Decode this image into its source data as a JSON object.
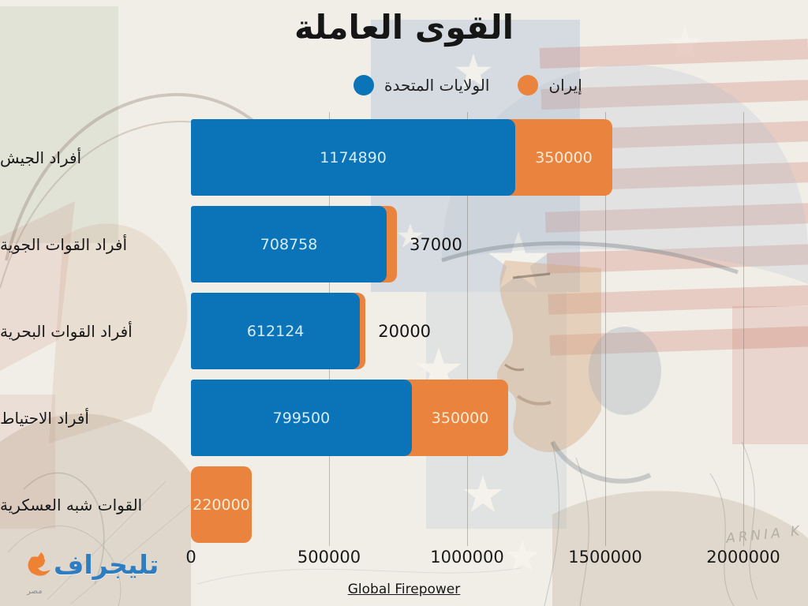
{
  "title": "القوى العاملة",
  "signature": "ARNIA K",
  "logo": {
    "name": "تليجراف",
    "sub": "مصر"
  },
  "colors": {
    "us": "#0b74b8",
    "iran": "#ea833d",
    "page_bg": "#f1eee7",
    "text": "#161616",
    "us_value_text": "#d6ebf8",
    "iran_value_text": "#f7ecd7"
  },
  "chart_data": {
    "type": "bar",
    "orientation": "horizontal",
    "stacked": true,
    "title": "القوى العاملة",
    "categories": [
      "أفراد الجيش",
      "أفراد القوات الجوية",
      "أفراد القوات البحرية",
      "أفراد الاحتياط",
      "القوات شبه العسكرية"
    ],
    "series": [
      {
        "name": "الولايات المتحدة",
        "color": "#0b74b8",
        "values": [
          1174890,
          708758,
          612124,
          799500,
          null
        ]
      },
      {
        "name": "إيران",
        "color": "#ea833d",
        "values": [
          350000,
          37000,
          20000,
          350000,
          220000
        ]
      }
    ],
    "x_ticks": [
      0,
      500000,
      1000000,
      1500000,
      2000000
    ],
    "xlim": [
      0,
      2000000
    ],
    "grid": "vertical",
    "legend_position": "top",
    "source": "Global Firepower"
  }
}
